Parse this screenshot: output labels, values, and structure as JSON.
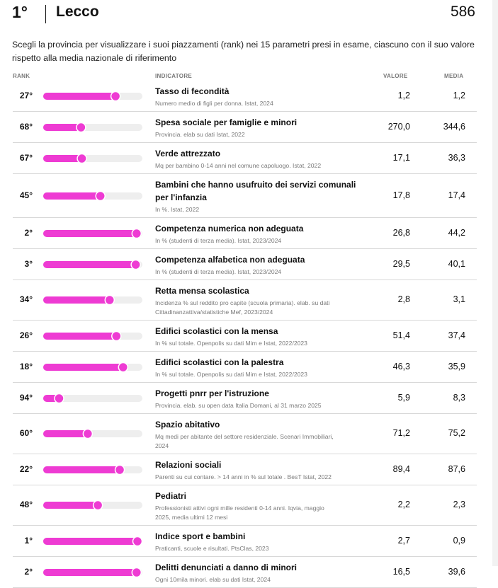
{
  "header": {
    "rank": "1°",
    "province": "Lecco",
    "score": "586"
  },
  "intro": "Scegli la provincia per visualizzare i suoi piazzamenti (rank) nei 15 parametri presi in esame, ciascuno con il suo valore rispetto alla media nazionale di riferimento",
  "columns": {
    "rank": "RANK",
    "indicator": "INDICATORE",
    "value": "VALORE",
    "average": "MEDIA"
  },
  "colors": {
    "bar_fill": "#ee3bd3",
    "bar_track": "#eeeeee"
  },
  "chart_data": {
    "type": "table",
    "rank_max": 107,
    "rows": [
      {
        "rank": 27,
        "rank_label": "27°",
        "title": [
          "Tasso di fecondità"
        ],
        "subtitle": [
          "Numero medio di figli per donna. Istat, 2024"
        ],
        "value": "1,2",
        "average": "1,2"
      },
      {
        "rank": 68,
        "rank_label": "68°",
        "title": [
          "Spesa sociale per famiglie e minori"
        ],
        "subtitle": [
          "Provincia. elab su dati Istat, 2022"
        ],
        "value": "270,0",
        "average": "344,6"
      },
      {
        "rank": 67,
        "rank_label": "67°",
        "title": [
          "Verde attrezzato"
        ],
        "subtitle": [
          "Mq per bambino 0-14 anni nel comune capoluogo. Istat, 2022"
        ],
        "value": "17,1",
        "average": "36,3"
      },
      {
        "rank": 45,
        "rank_label": "45°",
        "title": [
          "Bambini che hanno usufruito dei servizi comunali",
          "per l'infanzia"
        ],
        "subtitle": [
          "In %. Istat, 2022"
        ],
        "value": "17,8",
        "average": "17,4"
      },
      {
        "rank": 2,
        "rank_label": "2°",
        "title": [
          "Competenza numerica non adeguata"
        ],
        "subtitle": [
          "In % (studenti di terza media). Istat, 2023/2024"
        ],
        "value": "26,8",
        "average": "44,2"
      },
      {
        "rank": 3,
        "rank_label": "3°",
        "title": [
          "Competenza alfabetica non adeguata"
        ],
        "subtitle": [
          "In % (studenti di terza media). Istat, 2023/2024"
        ],
        "value": "29,5",
        "average": "40,1"
      },
      {
        "rank": 34,
        "rank_label": "34°",
        "title": [
          "Retta mensa scolastica"
        ],
        "subtitle": [
          "Incidenza % sul reddito pro capite (scuola primaria). elab. su dati",
          "Cittadinanzattiva/statistiche Mef, 2023/2024"
        ],
        "value": "2,8",
        "average": "3,1"
      },
      {
        "rank": 26,
        "rank_label": "26°",
        "title": [
          "Edifici scolastici con la mensa"
        ],
        "subtitle": [
          "In % sul totale. Openpolis su dati Mim e Istat, 2022/2023"
        ],
        "value": "51,4",
        "average": "37,4"
      },
      {
        "rank": 18,
        "rank_label": "18°",
        "title": [
          "Edifici scolastici con la palestra"
        ],
        "subtitle": [
          "In % sul totale. Openpolis su dati Mim e Istat, 2022/2023"
        ],
        "value": "46,3",
        "average": "35,9"
      },
      {
        "rank": 94,
        "rank_label": "94°",
        "title": [
          "Progetti pnrr per l'istruzione"
        ],
        "subtitle": [
          "Provincia. elab. su open data Italia Domani, al 31 marzo 2025"
        ],
        "value": "5,9",
        "average": "8,3"
      },
      {
        "rank": 60,
        "rank_label": "60°",
        "title": [
          "Spazio abitativo"
        ],
        "subtitle": [
          "Mq medi per abitante del settore residenziale. Scenari Immobiliari,",
          "2024"
        ],
        "value": "71,2",
        "average": "75,2"
      },
      {
        "rank": 22,
        "rank_label": "22°",
        "title": [
          "Relazioni sociali"
        ],
        "subtitle": [
          "Parenti su cui contare. > 14 anni in % sul totale . BesT Istat, 2022"
        ],
        "value": "89,4",
        "average": "87,6"
      },
      {
        "rank": 48,
        "rank_label": "48°",
        "title": [
          "Pediatri"
        ],
        "subtitle": [
          "Professionisti attivi ogni mille residenti 0-14 anni. Iqvia, maggio",
          "2025, media ultimi 12 mesi"
        ],
        "value": "2,2",
        "average": "2,3"
      },
      {
        "rank": 1,
        "rank_label": "1°",
        "title": [
          "Indice sport e bambini"
        ],
        "subtitle": [
          "Praticanti, scuole e risultati. PtsClas, 2023"
        ],
        "value": "2,7",
        "average": "0,9"
      },
      {
        "rank": 2,
        "rank_label": "2°",
        "title": [
          "Delitti denunciati a danno di minori"
        ],
        "subtitle": [
          "Ogni 10mila minori. elab su dati Istat, 2024"
        ],
        "value": "16,5",
        "average": "39,6"
      }
    ]
  }
}
